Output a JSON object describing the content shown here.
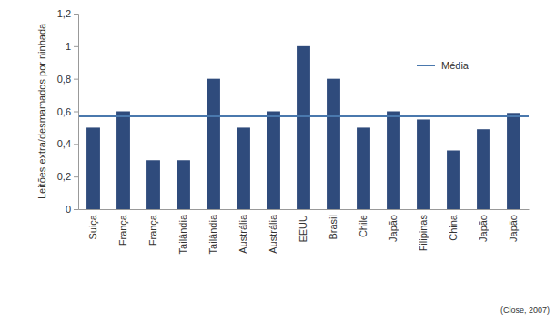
{
  "chart_data": {
    "type": "bar",
    "y_label": "Leitões extra/desmamados por ninhada",
    "categories": [
      "Suiça",
      "França",
      "França",
      "Tailândia",
      "Tailândia",
      "Austrália",
      "Austrália",
      "EEUU",
      "Brasil",
      "Chile",
      "Japão",
      "Filipinas",
      "China",
      "Japão",
      "Japão"
    ],
    "values": [
      0.5,
      0.6,
      0.3,
      0.3,
      0.8,
      0.5,
      0.6,
      1.0,
      0.8,
      0.5,
      0.6,
      0.55,
      0.36,
      0.49,
      0.59
    ],
    "color": "#2f4b7c",
    "mean": {
      "name": "Média",
      "value": 0.57,
      "color": "#4a78ad"
    },
    "ylim": [
      0,
      1.2
    ],
    "yticks": [
      0,
      {
        "value": 0.2,
        "label": "0,2"
      },
      {
        "value": 0.4,
        "label": "0,4"
      },
      {
        "value": 0.6,
        "label": "0,6"
      },
      {
        "value": 0.8,
        "label": "0,8"
      },
      1,
      {
        "value": 1.2,
        "label": "1,2"
      }
    ],
    "grid": false,
    "legend": "top-right",
    "source": "(Close, 2007)"
  }
}
